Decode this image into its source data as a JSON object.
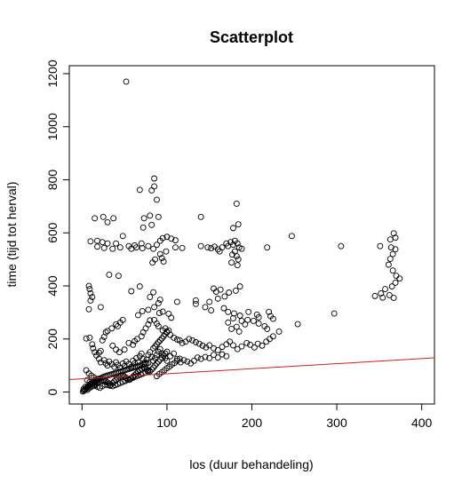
{
  "chart_data": {
    "type": "scatter",
    "title": "Scatterplot",
    "xlabel": "los (duur behandeling)",
    "ylabel": "time (tijd tot herval)",
    "xlim": [
      -15,
      415
    ],
    "ylim": [
      -45,
      1230
    ],
    "x_ticks": [
      0,
      100,
      200,
      300,
      400
    ],
    "y_ticks": [
      0,
      200,
      400,
      600,
      800,
      1000,
      1200
    ],
    "grid": false,
    "point_color": "#000000",
    "regression_line": {
      "color": "#d22020",
      "intercept": 50,
      "slope": 0.19,
      "x_range": [
        -15,
        415
      ]
    },
    "points": [
      [
        52,
        1170
      ],
      [
        85,
        805
      ],
      [
        85,
        775
      ],
      [
        68,
        762
      ],
      [
        82,
        760
      ],
      [
        88,
        725
      ],
      [
        182,
        710
      ],
      [
        73,
        655
      ],
      [
        15,
        655
      ],
      [
        25,
        660
      ],
      [
        37,
        655
      ],
      [
        80,
        665
      ],
      [
        90,
        660
      ],
      [
        140,
        660
      ],
      [
        30,
        640
      ],
      [
        82,
        630
      ],
      [
        72,
        620
      ],
      [
        184,
        632
      ],
      [
        178,
        618
      ],
      [
        48,
        588
      ],
      [
        247,
        588
      ],
      [
        367,
        598
      ],
      [
        369,
        582
      ],
      [
        363,
        575
      ],
      [
        10,
        568
      ],
      [
        18,
        570
      ],
      [
        24,
        565
      ],
      [
        30,
        560
      ],
      [
        40,
        560
      ],
      [
        18,
        548
      ],
      [
        26,
        543
      ],
      [
        36,
        540
      ],
      [
        45,
        545
      ],
      [
        55,
        550
      ],
      [
        62,
        553
      ],
      [
        70,
        560
      ],
      [
        78,
        550
      ],
      [
        84,
        540
      ],
      [
        88,
        555
      ],
      [
        92,
        570
      ],
      [
        95,
        580
      ],
      [
        100,
        585
      ],
      [
        105,
        578
      ],
      [
        110,
        572
      ],
      [
        64,
        545
      ],
      [
        71,
        542
      ],
      [
        58,
        540
      ],
      [
        92,
        520
      ],
      [
        94,
        505
      ],
      [
        86,
        500
      ],
      [
        96,
        492
      ],
      [
        83,
        488
      ],
      [
        99,
        530
      ],
      [
        110,
        545
      ],
      [
        118,
        543
      ],
      [
        140,
        550
      ],
      [
        148,
        545
      ],
      [
        152,
        542
      ],
      [
        156,
        548
      ],
      [
        160,
        538
      ],
      [
        162,
        530
      ],
      [
        165,
        545
      ],
      [
        170,
        560
      ],
      [
        172,
        550
      ],
      [
        175,
        565
      ],
      [
        178,
        555
      ],
      [
        180,
        570
      ],
      [
        183,
        560
      ],
      [
        185,
        545
      ],
      [
        188,
        540
      ],
      [
        180,
        530
      ],
      [
        177,
        518
      ],
      [
        182,
        512
      ],
      [
        184,
        500
      ],
      [
        176,
        488
      ],
      [
        183,
        478
      ],
      [
        218,
        545
      ],
      [
        305,
        550
      ],
      [
        351,
        550
      ],
      [
        364,
        545
      ],
      [
        369,
        538
      ],
      [
        366,
        520
      ],
      [
        363,
        502
      ],
      [
        361,
        480
      ],
      [
        366,
        458
      ],
      [
        370,
        438
      ],
      [
        374,
        428
      ],
      [
        369,
        412
      ],
      [
        365,
        398
      ],
      [
        357,
        388
      ],
      [
        352,
        372
      ],
      [
        345,
        362
      ],
      [
        354,
        356
      ],
      [
        362,
        365
      ],
      [
        367,
        355
      ],
      [
        8,
        400
      ],
      [
        9,
        388
      ],
      [
        10,
        372
      ],
      [
        12,
        358
      ],
      [
        10,
        345
      ],
      [
        8,
        312
      ],
      [
        22,
        320
      ],
      [
        32,
        442
      ],
      [
        43,
        438
      ],
      [
        68,
        398
      ],
      [
        58,
        380
      ],
      [
        84,
        376
      ],
      [
        80,
        358
      ],
      [
        92,
        348
      ],
      [
        90,
        335
      ],
      [
        85,
        320
      ],
      [
        78,
        310
      ],
      [
        71,
        305
      ],
      [
        66,
        290
      ],
      [
        91,
        298
      ],
      [
        95,
        303
      ],
      [
        102,
        295
      ],
      [
        105,
        280
      ],
      [
        112,
        340
      ],
      [
        134,
        345
      ],
      [
        134,
        332
      ],
      [
        155,
        390
      ],
      [
        158,
        378
      ],
      [
        163,
        386
      ],
      [
        168,
        360
      ],
      [
        173,
        375
      ],
      [
        181,
        382
      ],
      [
        186,
        398
      ],
      [
        160,
        352
      ],
      [
        150,
        340
      ],
      [
        145,
        320
      ],
      [
        152,
        308
      ],
      [
        167,
        316
      ],
      [
        172,
        302
      ],
      [
        179,
        296
      ],
      [
        186,
        288
      ],
      [
        178,
        278
      ],
      [
        172,
        262
      ],
      [
        188,
        268
      ],
      [
        195,
        272
      ],
      [
        192,
        255
      ],
      [
        182,
        246
      ],
      [
        176,
        238
      ],
      [
        185,
        228
      ],
      [
        196,
        302
      ],
      [
        206,
        292
      ],
      [
        208,
        282
      ],
      [
        220,
        302
      ],
      [
        222,
        286
      ],
      [
        225,
        276
      ],
      [
        202,
        268
      ],
      [
        208,
        258
      ],
      [
        215,
        248
      ],
      [
        218,
        238
      ],
      [
        232,
        228
      ],
      [
        254,
        256
      ],
      [
        297,
        296
      ],
      [
        5,
        202
      ],
      [
        9,
        205
      ],
      [
        12,
        180
      ],
      [
        13,
        165
      ],
      [
        15,
        150
      ],
      [
        17,
        138
      ],
      [
        20,
        148
      ],
      [
        22,
        155
      ],
      [
        24,
        195
      ],
      [
        26,
        208
      ],
      [
        28,
        225
      ],
      [
        30,
        230
      ],
      [
        35,
        240
      ],
      [
        40,
        255
      ],
      [
        42,
        248
      ],
      [
        45,
        262
      ],
      [
        48,
        272
      ],
      [
        36,
        175
      ],
      [
        40,
        160
      ],
      [
        44,
        150
      ],
      [
        50,
        160
      ],
      [
        55,
        185
      ],
      [
        60,
        178
      ],
      [
        62,
        192
      ],
      [
        65,
        200
      ],
      [
        70,
        210
      ],
      [
        72,
        225
      ],
      [
        75,
        240
      ],
      [
        78,
        255
      ],
      [
        80,
        270
      ],
      [
        85,
        272
      ],
      [
        88,
        258
      ],
      [
        90,
        248
      ],
      [
        95,
        232
      ],
      [
        98,
        240
      ],
      [
        100,
        228
      ],
      [
        104,
        215
      ],
      [
        108,
        205
      ],
      [
        112,
        198
      ],
      [
        115,
        195
      ],
      [
        118,
        185
      ],
      [
        122,
        190
      ],
      [
        126,
        200
      ],
      [
        130,
        195
      ],
      [
        134,
        188
      ],
      [
        138,
        182
      ],
      [
        142,
        175
      ],
      [
        146,
        168
      ],
      [
        150,
        176
      ],
      [
        155,
        165
      ],
      [
        160,
        158
      ],
      [
        165,
        170
      ],
      [
        170,
        180
      ],
      [
        174,
        190
      ],
      [
        178,
        176
      ],
      [
        183,
        162
      ],
      [
        188,
        172
      ],
      [
        194,
        185
      ],
      [
        198,
        178
      ],
      [
        203,
        168
      ],
      [
        207,
        182
      ],
      [
        212,
        175
      ],
      [
        217,
        190
      ],
      [
        221,
        200
      ],
      [
        225,
        210
      ],
      [
        20,
        125
      ],
      [
        22,
        112
      ],
      [
        26,
        120
      ],
      [
        28,
        108
      ],
      [
        30,
        100
      ],
      [
        32,
        115
      ],
      [
        35,
        105
      ],
      [
        38,
        95
      ],
      [
        40,
        112
      ],
      [
        42,
        102
      ],
      [
        45,
        92
      ],
      [
        48,
        108
      ],
      [
        50,
        98
      ],
      [
        52,
        115
      ],
      [
        55,
        105
      ],
      [
        58,
        95
      ],
      [
        60,
        118
      ],
      [
        62,
        108
      ],
      [
        64,
        128
      ],
      [
        66,
        112
      ],
      [
        68,
        135
      ],
      [
        70,
        145
      ],
      [
        72,
        125
      ],
      [
        74,
        112
      ],
      [
        76,
        122
      ],
      [
        78,
        140
      ],
      [
        80,
        150
      ],
      [
        82,
        132
      ],
      [
        84,
        118
      ],
      [
        86,
        128
      ],
      [
        88,
        140
      ],
      [
        90,
        152
      ],
      [
        92,
        162
      ],
      [
        94,
        145
      ],
      [
        96,
        138
      ],
      [
        98,
        128
      ],
      [
        100,
        118
      ],
      [
        104,
        135
      ],
      [
        108,
        145
      ],
      [
        112,
        125
      ],
      [
        116,
        112
      ],
      [
        120,
        120
      ],
      [
        124,
        115
      ],
      [
        128,
        108
      ],
      [
        132,
        118
      ],
      [
        136,
        130
      ],
      [
        140,
        125
      ],
      [
        145,
        132
      ],
      [
        150,
        128
      ],
      [
        155,
        140
      ],
      [
        160,
        130
      ],
      [
        165,
        142
      ],
      [
        170,
        135
      ],
      [
        1,
        2
      ],
      [
        2,
        5
      ],
      [
        3,
        8
      ],
      [
        4,
        10
      ],
      [
        5,
        14
      ],
      [
        6,
        18
      ],
      [
        7,
        20
      ],
      [
        8,
        24
      ],
      [
        9,
        28
      ],
      [
        10,
        30
      ],
      [
        11,
        32
      ],
      [
        12,
        34
      ],
      [
        13,
        36
      ],
      [
        14,
        38
      ],
      [
        15,
        40
      ],
      [
        16,
        42
      ],
      [
        17,
        44
      ],
      [
        18,
        46
      ],
      [
        19,
        48
      ],
      [
        20,
        50
      ],
      [
        22,
        52
      ],
      [
        24,
        55
      ],
      [
        26,
        58
      ],
      [
        28,
        60
      ],
      [
        30,
        62
      ],
      [
        32,
        64
      ],
      [
        34,
        66
      ],
      [
        36,
        68
      ],
      [
        38,
        70
      ],
      [
        40,
        72
      ],
      [
        42,
        74
      ],
      [
        44,
        76
      ],
      [
        46,
        78
      ],
      [
        48,
        80
      ],
      [
        50,
        82
      ],
      [
        52,
        84
      ],
      [
        54,
        86
      ],
      [
        56,
        88
      ],
      [
        58,
        90
      ],
      [
        60,
        92
      ],
      [
        62,
        94
      ],
      [
        64,
        96
      ],
      [
        66,
        98
      ],
      [
        68,
        100
      ],
      [
        70,
        102
      ],
      [
        72,
        104
      ],
      [
        74,
        106
      ],
      [
        76,
        108
      ],
      [
        78,
        110
      ],
      [
        2,
        12
      ],
      [
        4,
        20
      ],
      [
        6,
        8
      ],
      [
        8,
        14
      ],
      [
        10,
        18
      ],
      [
        12,
        22
      ],
      [
        14,
        26
      ],
      [
        16,
        30
      ],
      [
        18,
        34
      ],
      [
        20,
        38
      ],
      [
        22,
        42
      ],
      [
        24,
        46
      ],
      [
        26,
        44
      ],
      [
        28,
        40
      ],
      [
        30,
        36
      ],
      [
        32,
        32
      ],
      [
        34,
        28
      ],
      [
        36,
        34
      ],
      [
        38,
        40
      ],
      [
        40,
        46
      ],
      [
        42,
        52
      ],
      [
        44,
        56
      ],
      [
        46,
        60
      ],
      [
        48,
        64
      ],
      [
        50,
        58
      ],
      [
        52,
        54
      ],
      [
        54,
        50
      ],
      [
        56,
        46
      ],
      [
        58,
        52
      ],
      [
        60,
        58
      ],
      [
        62,
        64
      ],
      [
        64,
        70
      ],
      [
        66,
        76
      ],
      [
        68,
        82
      ],
      [
        70,
        88
      ],
      [
        72,
        94
      ],
      [
        74,
        90
      ],
      [
        76,
        86
      ],
      [
        78,
        82
      ],
      [
        80,
        78
      ],
      [
        5,
        82
      ],
      [
        8,
        70
      ],
      [
        11,
        62
      ],
      [
        14,
        55
      ],
      [
        17,
        48
      ],
      [
        6,
        45
      ],
      [
        9,
        38
      ],
      [
        12,
        30
      ],
      [
        15,
        24
      ],
      [
        18,
        20
      ],
      [
        21,
        16
      ],
      [
        24,
        22
      ],
      [
        27,
        28
      ],
      [
        30,
        26
      ],
      [
        33,
        24
      ],
      [
        36,
        22
      ],
      [
        39,
        26
      ],
      [
        42,
        30
      ],
      [
        45,
        34
      ],
      [
        48,
        38
      ],
      [
        51,
        42
      ],
      [
        54,
        46
      ],
      [
        57,
        50
      ],
      [
        60,
        54
      ],
      [
        63,
        58
      ],
      [
        66,
        62
      ],
      [
        69,
        66
      ],
      [
        72,
        70
      ],
      [
        75,
        74
      ],
      [
        78,
        78
      ],
      [
        82,
        85
      ],
      [
        84,
        92
      ],
      [
        86,
        100
      ],
      [
        88,
        108
      ],
      [
        90,
        115
      ],
      [
        92,
        122
      ],
      [
        94,
        130
      ],
      [
        96,
        138
      ],
      [
        98,
        145
      ],
      [
        100,
        152
      ],
      [
        84,
        165
      ],
      [
        86,
        172
      ],
      [
        88,
        180
      ],
      [
        90,
        188
      ],
      [
        92,
        195
      ],
      [
        94,
        202
      ],
      [
        96,
        210
      ],
      [
        98,
        218
      ],
      [
        100,
        225
      ],
      [
        102,
        232
      ],
      [
        88,
        60
      ],
      [
        91,
        68
      ],
      [
        94,
        75
      ],
      [
        97,
        82
      ],
      [
        100,
        90
      ],
      [
        103,
        96
      ],
      [
        106,
        104
      ],
      [
        109,
        110
      ],
      [
        112,
        118
      ],
      [
        115,
        126
      ]
    ]
  }
}
